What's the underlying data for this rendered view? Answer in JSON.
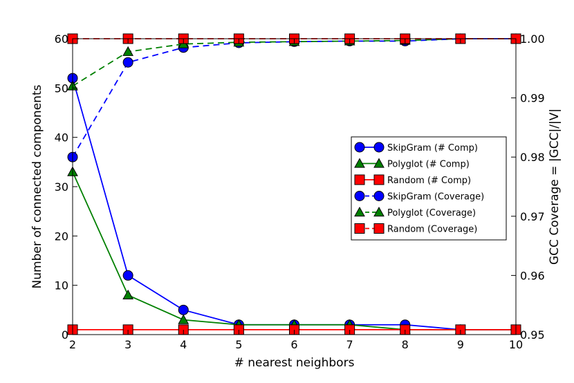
{
  "chart_data": {
    "type": "line",
    "xlabel": "# nearest neighbors",
    "ylabel_left": "Number of connected components",
    "ylabel_right": "GCC Coverage = |GCC|/|V|",
    "x": [
      2,
      3,
      4,
      5,
      6,
      7,
      8,
      9,
      10
    ],
    "xlim": [
      2,
      10
    ],
    "ylim_left": [
      0,
      60
    ],
    "ylim_right": [
      0.95,
      1.0
    ],
    "x_ticks": [
      "2",
      "3",
      "4",
      "5",
      "6",
      "7",
      "8",
      "9",
      "10"
    ],
    "y_left_ticks": [
      "0",
      "10",
      "20",
      "30",
      "40",
      "50",
      "60"
    ],
    "y_right_ticks": [
      "0.95",
      "0.96",
      "0.97",
      "0.98",
      "0.99",
      "1.00"
    ],
    "legend_position": "center-right",
    "grid": false,
    "series": [
      {
        "name": "SkipGram (# Comp)",
        "axis": "left",
        "style": "solid",
        "marker": "circle",
        "color": "#0000ff",
        "values": [
          52,
          12,
          5,
          2,
          2,
          2,
          2,
          1,
          1
        ]
      },
      {
        "name": "Polyglot (# Comp)",
        "axis": "left",
        "style": "solid",
        "marker": "triangle",
        "color": "#008000",
        "values": [
          33,
          8,
          3,
          2,
          2,
          2,
          1,
          1,
          1
        ]
      },
      {
        "name": "Random (# Comp)",
        "axis": "left",
        "style": "solid",
        "marker": "square",
        "color": "#ff0000",
        "values": [
          1,
          1,
          1,
          1,
          1,
          1,
          1,
          1,
          1
        ]
      },
      {
        "name": "SkipGram (Coverage)",
        "axis": "right",
        "style": "dashed",
        "marker": "circle",
        "color": "#0000ff",
        "values": [
          0.98,
          0.996,
          0.9985,
          0.9993,
          0.9995,
          0.9996,
          0.9996,
          1.0,
          1.0
        ]
      },
      {
        "name": "Polyglot (Coverage)",
        "axis": "right",
        "style": "dashed",
        "marker": "triangle",
        "color": "#008000",
        "values": [
          0.992,
          0.9978,
          0.9991,
          0.9994,
          0.9995,
          0.9996,
          0.9997,
          1.0,
          1.0
        ]
      },
      {
        "name": "Random (Coverage)",
        "axis": "right",
        "style": "dashed",
        "marker": "square",
        "color": "#ff0000",
        "values": [
          1.0,
          1.0,
          1.0,
          1.0,
          1.0,
          1.0,
          1.0,
          1.0,
          1.0
        ]
      }
    ]
  }
}
